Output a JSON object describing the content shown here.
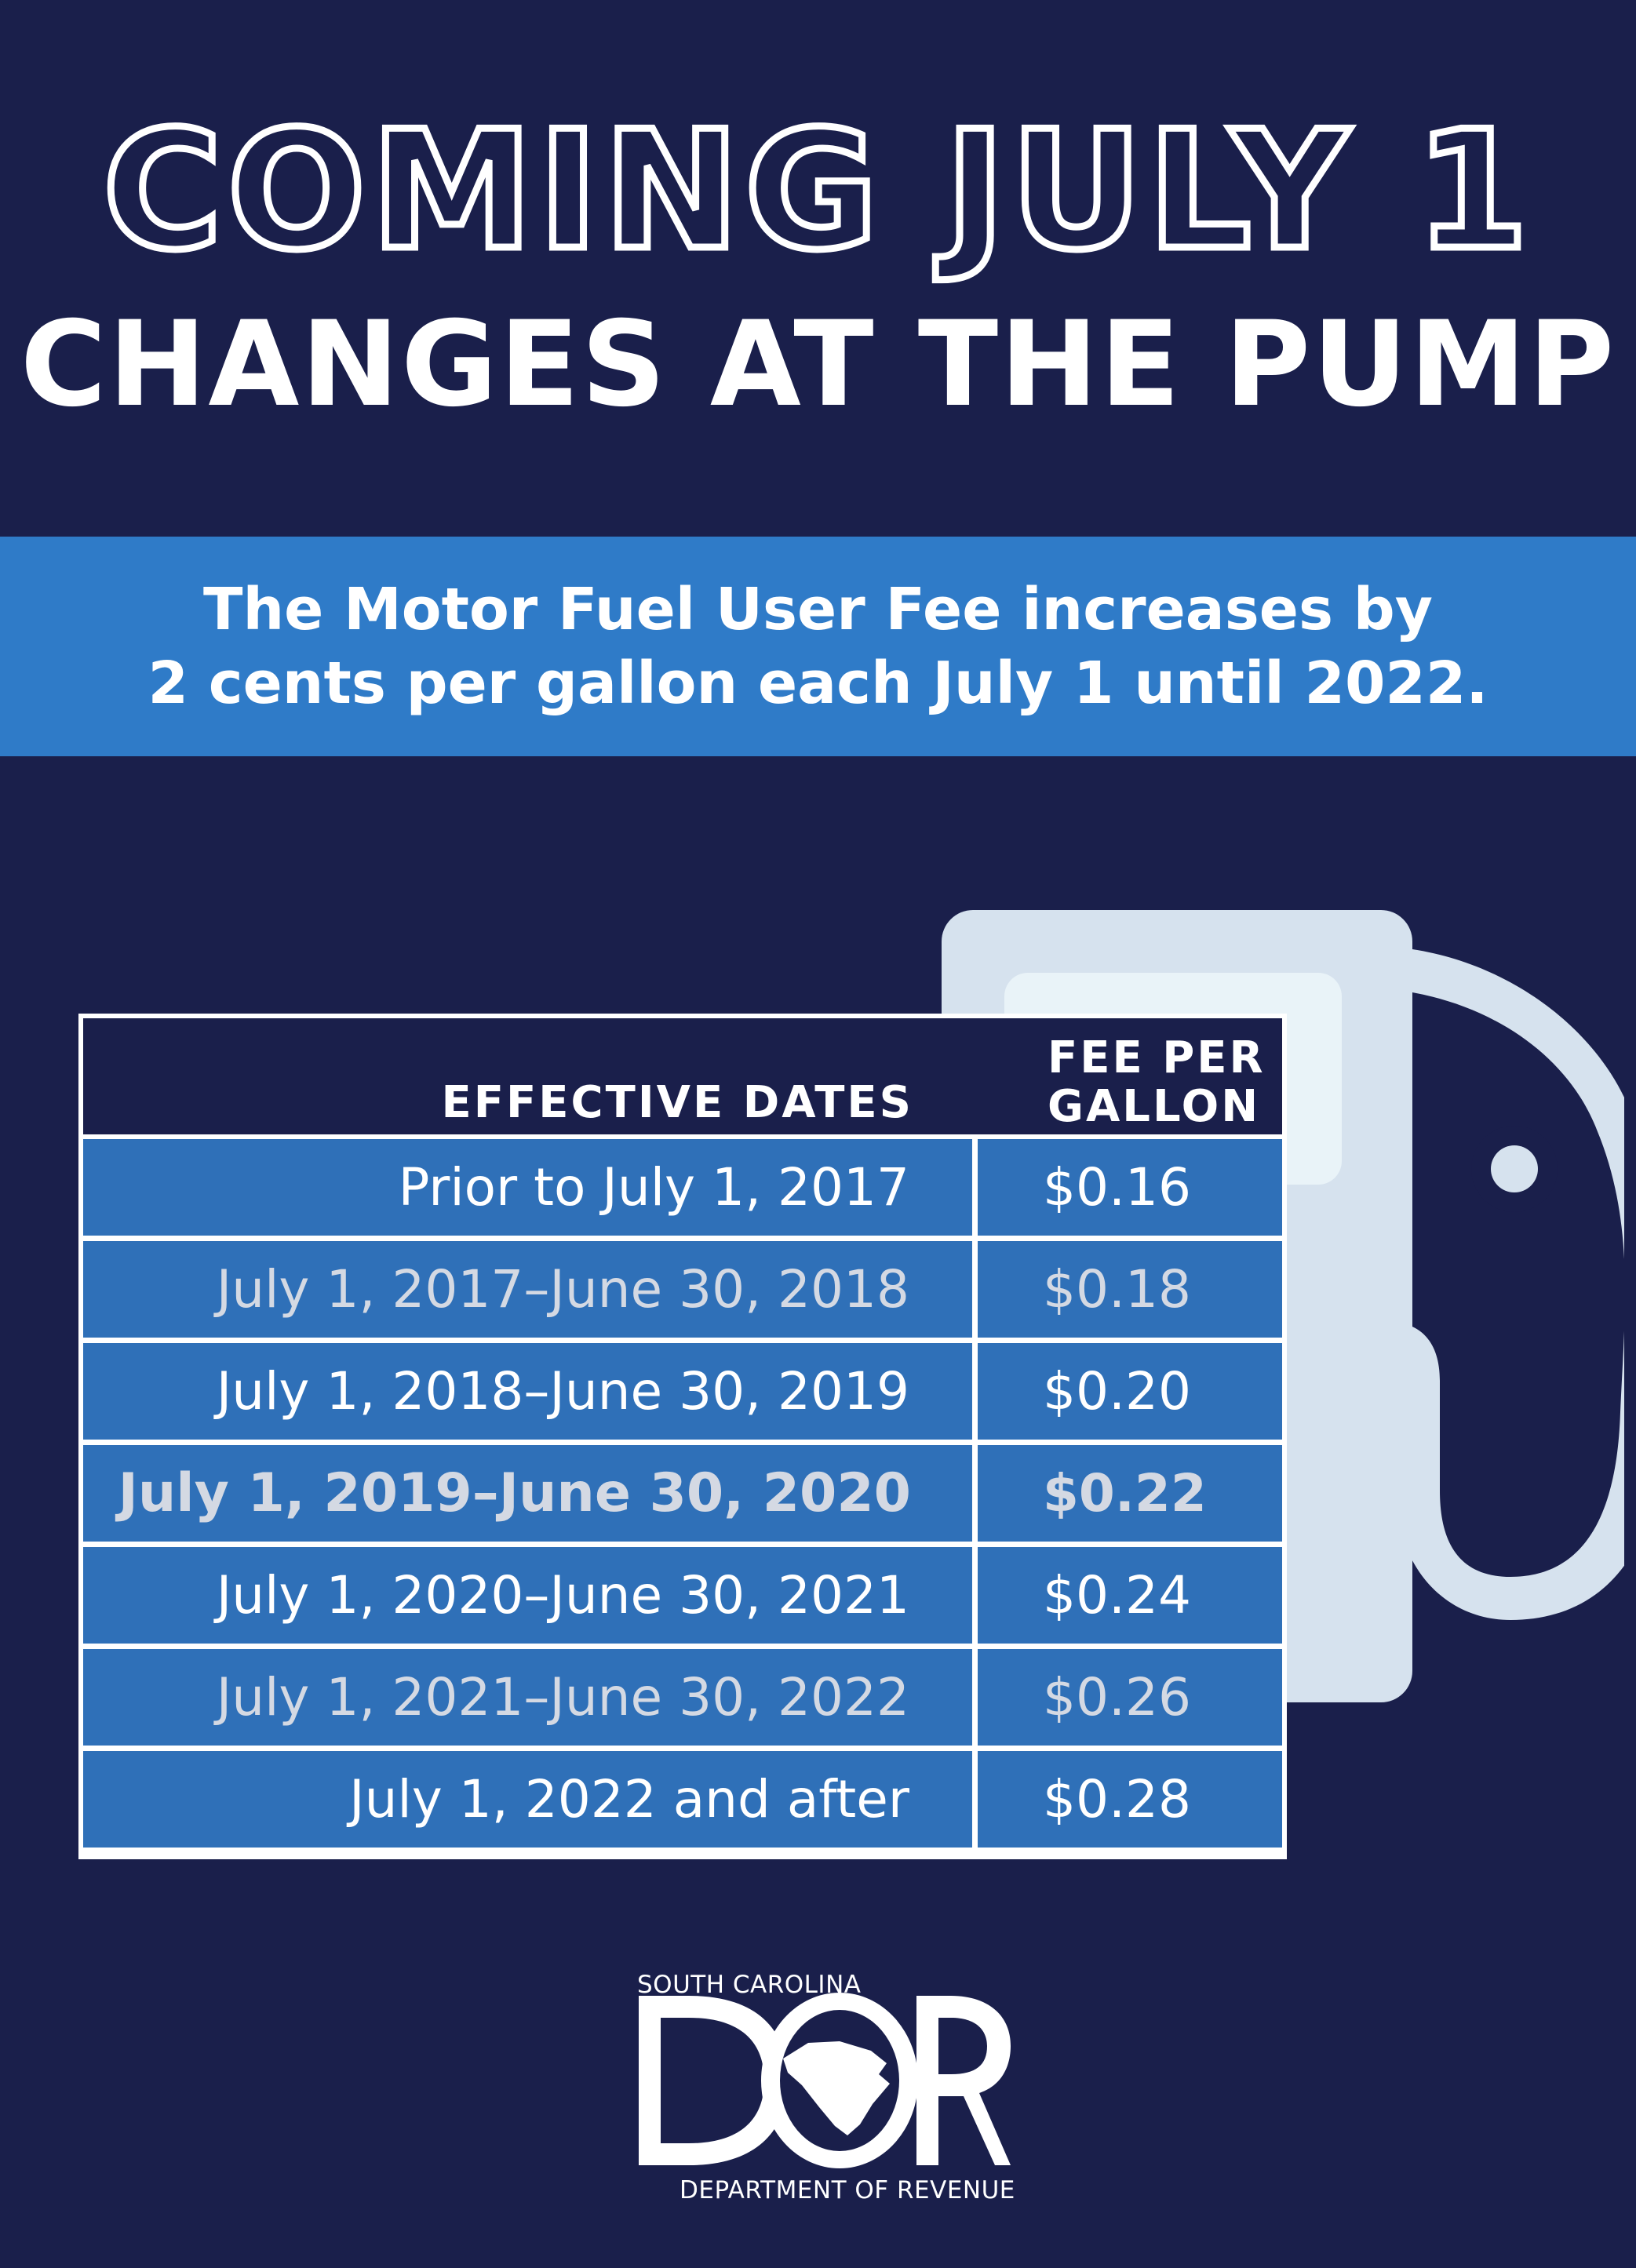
{
  "header": {
    "line1": "COMING JULY 1",
    "line2": "CHANGES AT THE PUMP"
  },
  "banner": {
    "line1": "The Motor Fuel User Fee increases by",
    "line2": "2 cents per gallon each July 1 until 2022."
  },
  "table": {
    "col_dates": "EFFECTIVE DATES",
    "col_fee_line1": "FEE PER",
    "col_fee_line2": "GALLON",
    "rows": [
      {
        "dates": "Prior to July 1, 2017",
        "fee": "$0.16"
      },
      {
        "dates": "July 1, 2017–June 30, 2018",
        "fee": "$0.18"
      },
      {
        "dates": "July 1, 2018–June 30, 2019",
        "fee": "$0.20"
      },
      {
        "dates": "July 1, 2019–June 30, 2020",
        "fee": "$0.22"
      },
      {
        "dates": "July 1, 2020–June 30, 2021",
        "fee": "$0.24"
      },
      {
        "dates": "July 1, 2021–June 30, 2022",
        "fee": "$0.26"
      },
      {
        "dates": "July 1, 2022 and after",
        "fee": "$0.28"
      }
    ]
  },
  "logo": {
    "top": "SOUTH CAROLINA",
    "letters": "DOR",
    "bottom": "DEPARTMENT OF REVENUE"
  },
  "colors": {
    "background": "#1a1f4b",
    "banner": "#2f7bc8",
    "cell": "#2f70b8",
    "pump": "#d6e2ee"
  },
  "icons": [
    "fuel-pump-icon",
    "south-carolina-state-icon"
  ]
}
